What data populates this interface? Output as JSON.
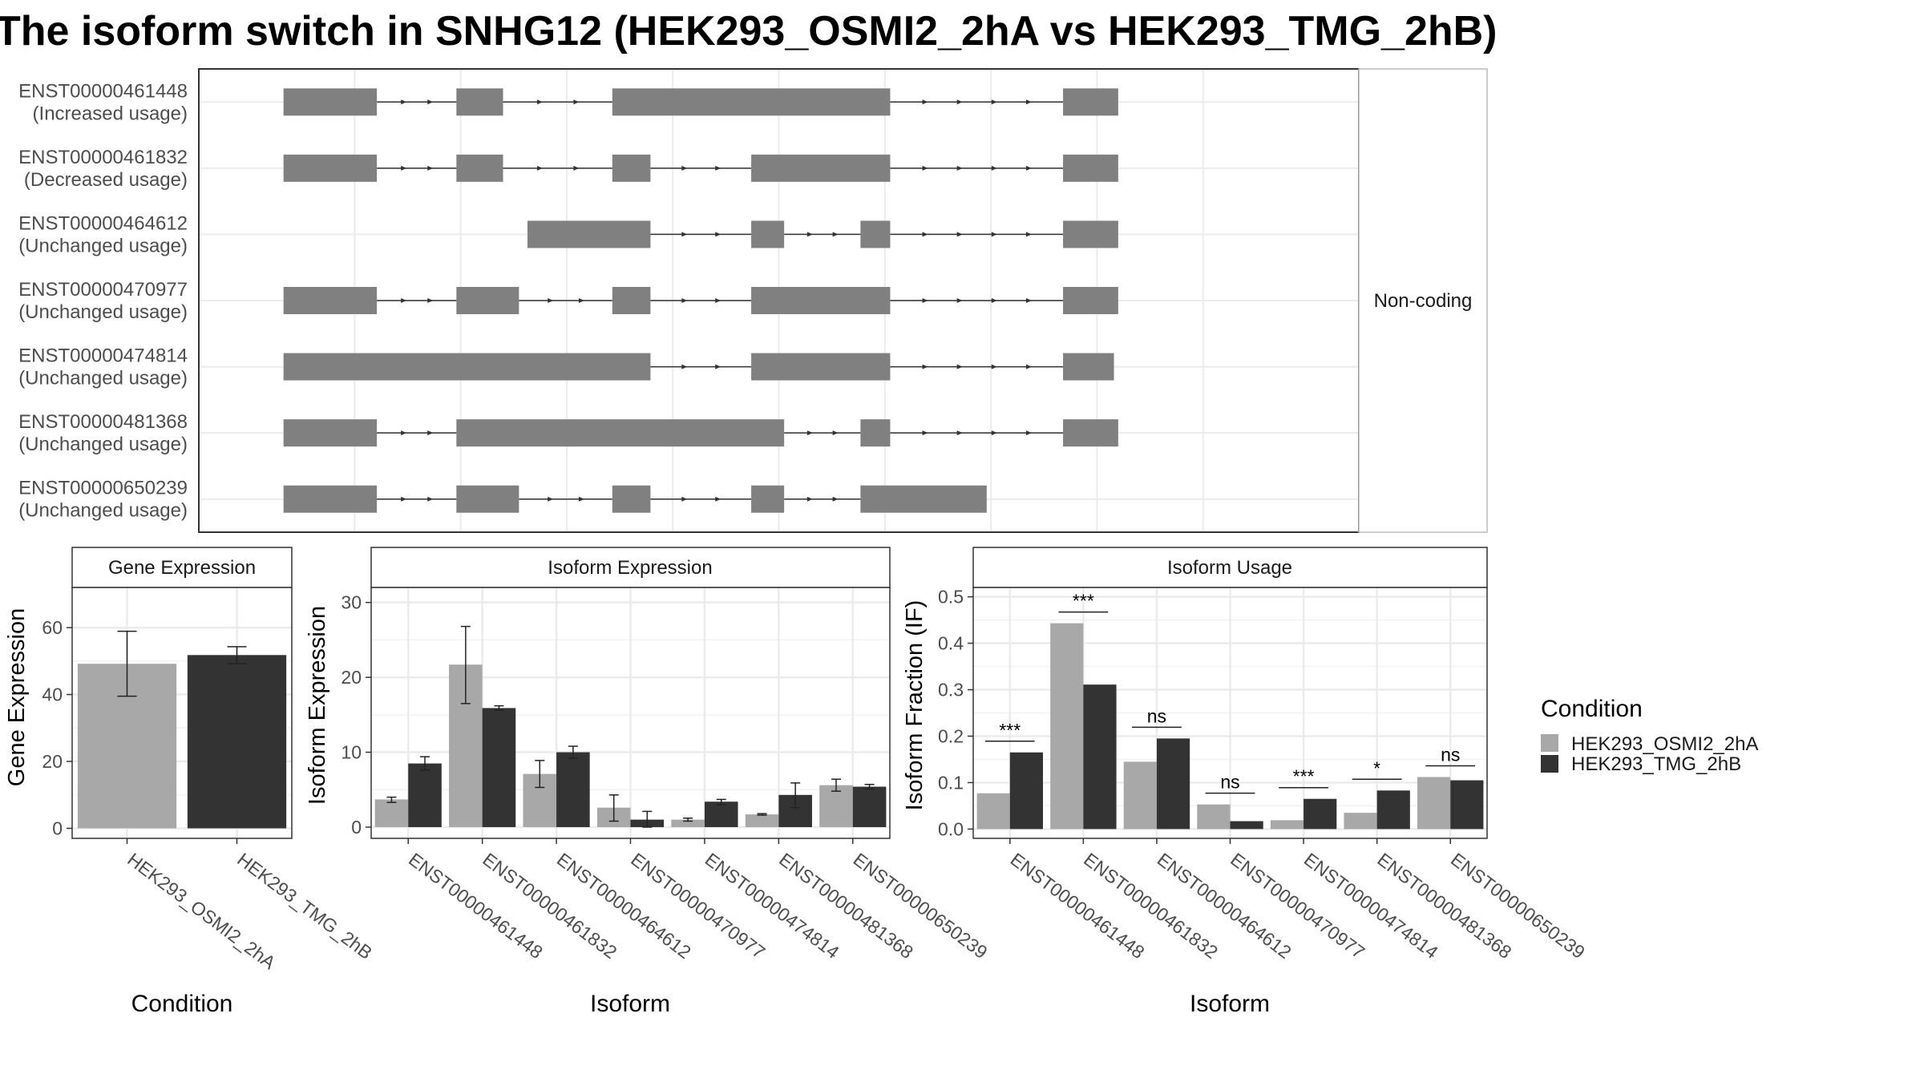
{
  "title": "The isoform switch in SNHG12 (HEK293_OSMI2_2hA vs HEK293_TMG_2hB)",
  "colors": {
    "cond_a": "#a8a8a8",
    "cond_b": "#333333",
    "exon": "#808080",
    "grid": "#ebebeb",
    "panel_border": "#333333",
    "strip_bg": "#ffffff"
  },
  "legend": {
    "title": "Condition",
    "position": "right",
    "items": [
      "HEK293_OSMI2_2hA",
      "HEK293_TMG_2hB"
    ]
  },
  "chart_data": [
    {
      "type": "structure",
      "panel": "transcript-structure",
      "facet_label": "Non-coding",
      "genomic_range": [
        0,
        1000
      ],
      "transcripts": [
        {
          "id": "ENST00000461448",
          "usage": "(Increased usage)",
          "exons": [
            [
              33,
              121
            ],
            [
              196,
              240
            ],
            [
              343,
              605
            ],
            [
              768,
              820
            ]
          ]
        },
        {
          "id": "ENST00000461832",
          "usage": "(Decreased usage)",
          "exons": [
            [
              33,
              121
            ],
            [
              196,
              240
            ],
            [
              343,
              379
            ],
            [
              474,
              605
            ],
            [
              768,
              820
            ]
          ]
        },
        {
          "id": "ENST00000464612",
          "usage": "(Unchanged usage)",
          "exons": [
            [
              263,
              379
            ],
            [
              474,
              505
            ],
            [
              577,
              605
            ],
            [
              768,
              820
            ]
          ]
        },
        {
          "id": "ENST00000470977",
          "usage": "(Unchanged usage)",
          "exons": [
            [
              33,
              121
            ],
            [
              196,
              255
            ],
            [
              343,
              379
            ],
            [
              474,
              605
            ],
            [
              768,
              820
            ]
          ]
        },
        {
          "id": "ENST00000474814",
          "usage": "(Unchanged usage)",
          "exons": [
            [
              33,
              379
            ],
            [
              474,
              605
            ],
            [
              768,
              816
            ]
          ]
        },
        {
          "id": "ENST00000481368",
          "usage": "(Unchanged usage)",
          "exons": [
            [
              33,
              121
            ],
            [
              196,
              505
            ],
            [
              577,
              605
            ],
            [
              768,
              820
            ]
          ]
        },
        {
          "id": "ENST00000650239",
          "usage": "(Unchanged usage)",
          "exons": [
            [
              33,
              121
            ],
            [
              196,
              255
            ],
            [
              343,
              379
            ],
            [
              474,
              505
            ],
            [
              577,
              696
            ]
          ]
        }
      ]
    },
    {
      "type": "bar",
      "panel": "gene-expression",
      "strip": "Gene Expression",
      "xlabel": "Condition",
      "ylabel": "Gene Expression",
      "ylim": [
        -3,
        72
      ],
      "yticks": [
        0,
        20,
        40,
        60
      ],
      "grid": true,
      "categories": [
        "HEK293_OSMI2_2hA",
        "HEK293_TMG_2hB"
      ],
      "values": [
        49.2,
        51.8
      ],
      "errors": [
        [
          39.5,
          58.9
        ],
        [
          49.2,
          54.3
        ]
      ]
    },
    {
      "type": "bar",
      "panel": "isoform-expression",
      "strip": "Isoform Expression",
      "xlabel": "Isoform",
      "ylabel": "Isoform Expression",
      "ylim": [
        -1.5,
        32
      ],
      "yticks": [
        0,
        10,
        20,
        30
      ],
      "grid": true,
      "categories": [
        "ENST00000461448",
        "ENST00000461832",
        "ENST00000464612",
        "ENST00000470977",
        "ENST00000474814",
        "ENST00000481368",
        "ENST00000650239"
      ],
      "series": [
        {
          "name": "HEK293_OSMI2_2hA",
          "values": [
            3.7,
            21.7,
            7.1,
            2.6,
            1.0,
            1.7,
            5.6
          ],
          "errors": [
            [
              3.3,
              4.0
            ],
            [
              16.5,
              26.8
            ],
            [
              5.3,
              8.9
            ],
            [
              0.8,
              4.3
            ],
            [
              0.8,
              1.2
            ],
            [
              1.6,
              1.8
            ],
            [
              4.8,
              6.4
            ]
          ]
        },
        {
          "name": "HEK293_TMG_2hB",
          "values": [
            8.5,
            15.9,
            10.0,
            1.0,
            3.4,
            4.3,
            5.4
          ],
          "errors": [
            [
              7.6,
              9.4
            ],
            [
              15.6,
              16.2
            ],
            [
              9.2,
              10.8
            ],
            [
              0,
              2.1
            ],
            [
              3.0,
              3.7
            ],
            [
              2.6,
              5.9
            ],
            [
              5.1,
              5.7
            ]
          ]
        }
      ]
    },
    {
      "type": "bar",
      "panel": "isoform-usage",
      "strip": "Isoform Usage",
      "xlabel": "Isoform",
      "ylabel": "Isoform Fraction (IF)",
      "ylim": [
        -0.02,
        0.52
      ],
      "yticks": [
        0.0,
        0.1,
        0.2,
        0.3,
        0.4,
        0.5
      ],
      "ytick_labels": [
        "0.0",
        "0.1",
        "0.2",
        "0.3",
        "0.4",
        "0.5"
      ],
      "grid": true,
      "categories": [
        "ENST00000461448",
        "ENST00000461832",
        "ENST00000464612",
        "ENST00000470977",
        "ENST00000474814",
        "ENST00000481368",
        "ENST00000650239"
      ],
      "series": [
        {
          "name": "HEK293_OSMI2_2hA",
          "values": [
            0.077,
            0.443,
            0.145,
            0.053,
            0.019,
            0.035,
            0.112
          ]
        },
        {
          "name": "HEK293_TMG_2hB",
          "values": [
            0.165,
            0.311,
            0.195,
            0.017,
            0.065,
            0.083,
            0.105
          ]
        }
      ],
      "significance": [
        "***",
        "***",
        "ns",
        "ns",
        "***",
        "*",
        "ns"
      ]
    }
  ]
}
